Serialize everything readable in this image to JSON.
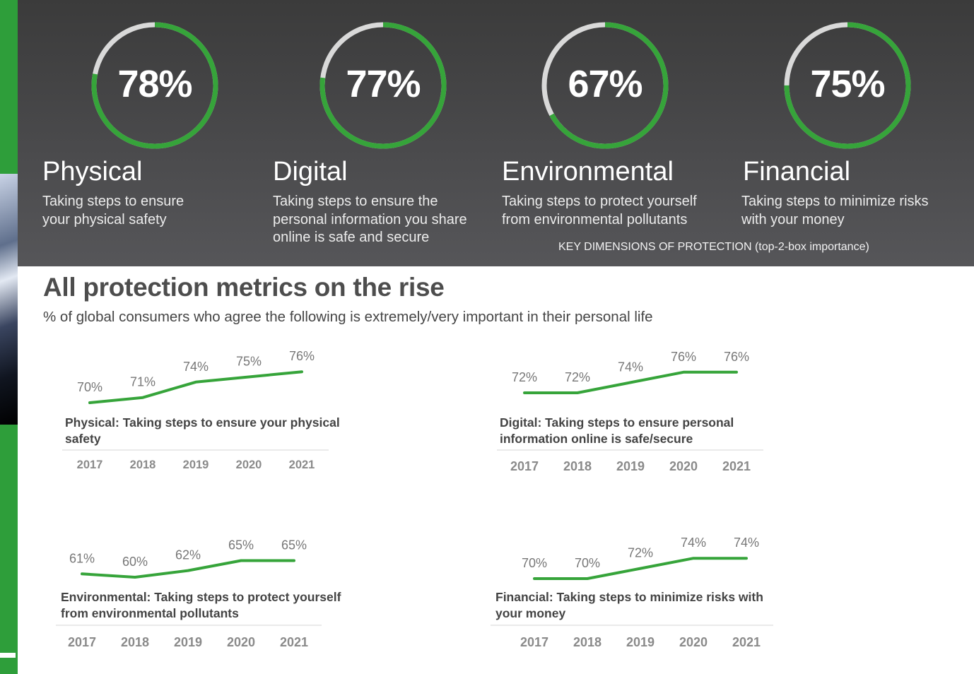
{
  "colors": {
    "accent_green": "#36a43a",
    "ring_track": "#d9d9d9",
    "panel_dark": "#444446",
    "label_gray": "#777777",
    "year_gray": "#8a8a8a"
  },
  "header": {
    "dimensions": [
      {
        "value_label": "78%",
        "value": 78,
        "title": "Physical",
        "description": "Taking steps to ensure your physical safety"
      },
      {
        "value_label": "77%",
        "value": 77,
        "title": "Digital",
        "description": "Taking steps to ensure the personal information you share online is safe and secure"
      },
      {
        "value_label": "67%",
        "value": 67,
        "title": "Environmental",
        "description": "Taking steps to protect yourself from environmental pollutants"
      },
      {
        "value_label": "75%",
        "value": 75,
        "title": "Financial",
        "description": "Taking steps to minimize risks with your money"
      }
    ],
    "caption": "KEY DIMENSIONS OF PROTECTION (top-2-box importance)"
  },
  "section": {
    "title": "All protection metrics on the rise",
    "subtitle": "% of global consumers who agree the following is extremely/very important in their personal life"
  },
  "chart_data": [
    {
      "type": "line",
      "title": "Physical: Taking steps to ensure your physical safety",
      "x": [
        "2017",
        "2018",
        "2019",
        "2020",
        "2021"
      ],
      "series": [
        {
          "values": [
            70,
            71,
            74,
            75,
            76
          ],
          "labels": [
            "70%",
            "71%",
            "74%",
            "75%",
            "76%"
          ]
        }
      ]
    },
    {
      "type": "line",
      "title": "Digital: Taking steps to ensure personal information online is safe/secure",
      "x": [
        "2017",
        "2018",
        "2019",
        "2020",
        "2021"
      ],
      "series": [
        {
          "values": [
            72,
            72,
            74,
            76,
            76
          ],
          "labels": [
            "72%",
            "72%",
            "74%",
            "76%",
            "76%"
          ]
        }
      ]
    },
    {
      "type": "line",
      "title": "Environmental: Taking steps to protect yourself from environmental pollutants",
      "x": [
        "2017",
        "2018",
        "2019",
        "2020",
        "2021"
      ],
      "series": [
        {
          "values": [
            61,
            60,
            62,
            65,
            65
          ],
          "labels": [
            "61%",
            "60%",
            "62%",
            "65%",
            "65%"
          ]
        }
      ]
    },
    {
      "type": "line",
      "title": "Financial: Taking steps to minimize risks with your money",
      "x": [
        "2017",
        "2018",
        "2019",
        "2020",
        "2021"
      ],
      "series": [
        {
          "values": [
            70,
            70,
            72,
            74,
            74
          ],
          "labels": [
            "70%",
            "70%",
            "72%",
            "74%",
            "74%"
          ]
        }
      ]
    }
  ]
}
